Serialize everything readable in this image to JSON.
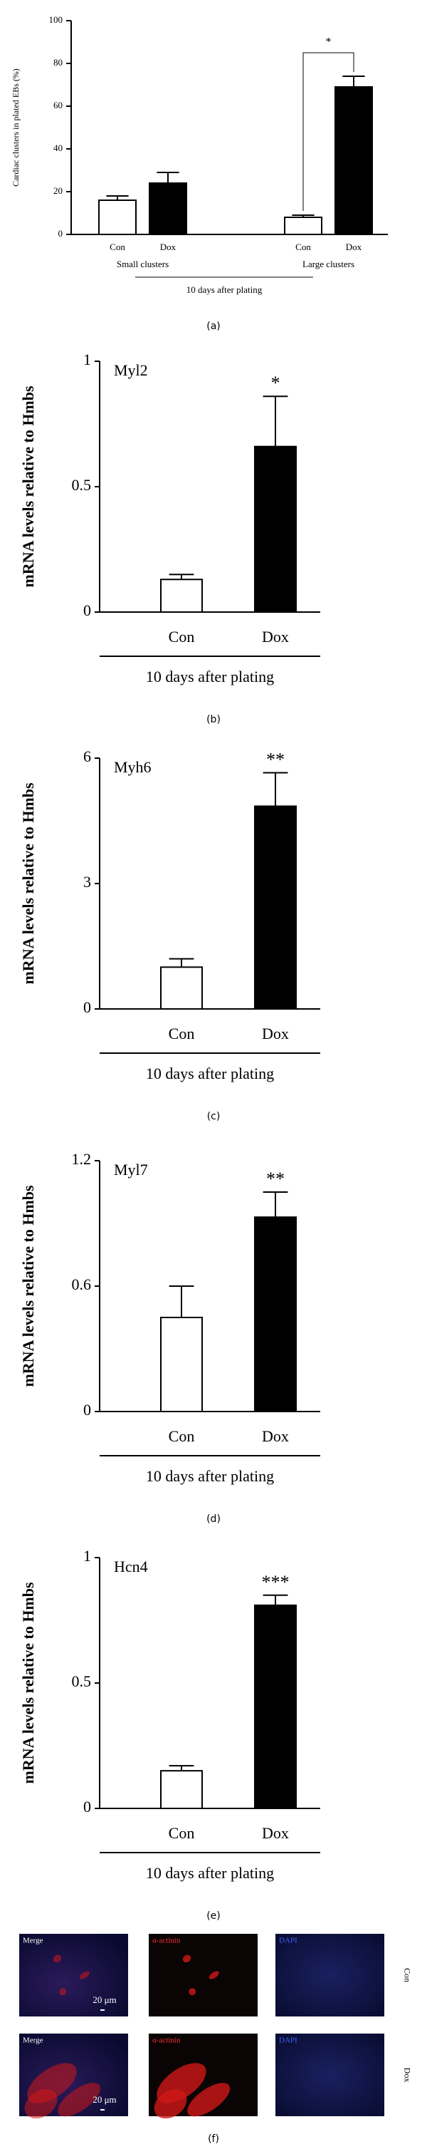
{
  "chart_data": [
    {
      "type": "bar",
      "panel_label": "(a)",
      "ylabel": "Cardiac clusters in plated EBs (%)",
      "categories": [
        "Con",
        "Dox",
        "Con",
        "Dox"
      ],
      "groups": [
        "Small clusters",
        "Large clusters"
      ],
      "xlabel": "10 days after plating",
      "values": [
        16,
        24,
        8,
        69
      ],
      "errors": [
        2,
        5,
        1,
        5
      ],
      "colors": [
        "#ffffff",
        "#000000",
        "#ffffff",
        "#000000"
      ],
      "significance": [
        null,
        null,
        null,
        "*"
      ],
      "ylim": [
        0,
        100
      ],
      "yticks": [
        0,
        20,
        40,
        60,
        80,
        100
      ]
    },
    {
      "type": "bar",
      "panel_label": "(b)",
      "gene": "Myl2",
      "ylabel": "mRNA levels relative to Hmbs",
      "categories": [
        "Con",
        "Dox"
      ],
      "xlabel": "10 days after plating",
      "values": [
        0.13,
        0.66
      ],
      "errors": [
        0.02,
        0.2
      ],
      "colors": [
        "#ffffff",
        "#000000"
      ],
      "significance": [
        null,
        "*"
      ],
      "ylim": [
        0,
        1
      ],
      "yticks": [
        0,
        0.5,
        1
      ]
    },
    {
      "type": "bar",
      "panel_label": "(c)",
      "gene": "Myh6",
      "ylabel": "mRNA levels relative to Hmbs",
      "categories": [
        "Con",
        "Dox"
      ],
      "xlabel": "10 days after plating",
      "values": [
        1.0,
        4.85
      ],
      "errors": [
        0.2,
        0.8
      ],
      "colors": [
        "#ffffff",
        "#000000"
      ],
      "significance": [
        null,
        "**"
      ],
      "ylim": [
        0,
        6
      ],
      "yticks": [
        0,
        3,
        6
      ]
    },
    {
      "type": "bar",
      "panel_label": "(d)",
      "gene": "Myl7",
      "ylabel": "mRNA levels relative to Hmbs",
      "categories": [
        "Con",
        "Dox"
      ],
      "xlabel": "10 days after plating",
      "values": [
        0.45,
        0.93
      ],
      "errors": [
        0.15,
        0.12
      ],
      "colors": [
        "#ffffff",
        "#000000"
      ],
      "significance": [
        null,
        "**"
      ],
      "ylim": [
        0,
        1.2
      ],
      "yticks": [
        0,
        0.6,
        1.2
      ]
    },
    {
      "type": "bar",
      "panel_label": "(e)",
      "gene": "Hcn4",
      "ylabel": "mRNA levels relative to Hmbs",
      "categories": [
        "Con",
        "Dox"
      ],
      "xlabel": "10 days after plating",
      "values": [
        0.15,
        0.81
      ],
      "errors": [
        0.02,
        0.04
      ],
      "colors": [
        "#ffffff",
        "#000000"
      ],
      "significance": [
        null,
        "***"
      ],
      "ylim": [
        0,
        1
      ],
      "yticks": [
        0,
        0.5,
        1
      ]
    }
  ],
  "panel_f": {
    "label": "(f)",
    "rows": [
      {
        "condition": "Con",
        "images": [
          "Merge",
          "α-actinin",
          "DAPI"
        ],
        "scale_bar": "20 μm"
      },
      {
        "condition": "Dox",
        "images": [
          "Merge",
          "α-actinin",
          "DAPI"
        ],
        "scale_bar": "20 μm"
      }
    ]
  }
}
